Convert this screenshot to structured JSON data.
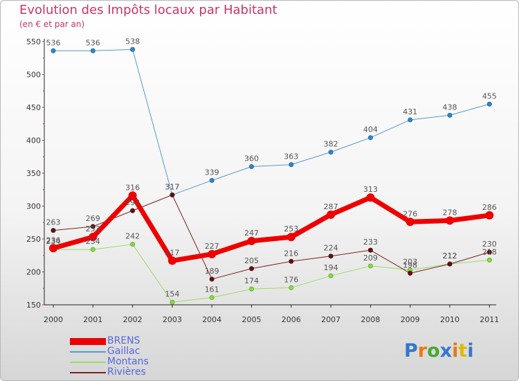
{
  "title": "Evolution des Impôts locaux par Habitant",
  "subtitle": "(en € et par an)",
  "logo_text": "Proxiti",
  "colors": {
    "title": "#cc3366",
    "brens": "#ee0000",
    "gaillac": "#5599cc",
    "montans": "#99dd66",
    "rivieres": "#772222",
    "legend_text": "#5566dd"
  },
  "chart_data": {
    "type": "line",
    "title": "Evolution des Impôts locaux par Habitant",
    "subtitle": "(en € et par an)",
    "xlabel": "",
    "ylabel": "",
    "x": [
      "2000",
      "2001",
      "2002",
      "2003",
      "2004",
      "2005",
      "2006",
      "2007",
      "2008",
      "2009",
      "2010",
      "2011"
    ],
    "ylim": [
      150,
      550
    ],
    "yticks": [
      150,
      200,
      250,
      300,
      350,
      400,
      450,
      500,
      550
    ],
    "grid": false,
    "legend_position": "bottom-left",
    "series": [
      {
        "name": "BRENS",
        "color": "#ee0000",
        "values": [
          236,
          253,
          316,
          217,
          227,
          247,
          253,
          287,
          313,
          276,
          278,
          286
        ]
      },
      {
        "name": "Gaillac",
        "color": "#5599cc",
        "values": [
          536,
          536,
          538,
          317,
          339,
          360,
          363,
          382,
          404,
          431,
          438,
          455
        ]
      },
      {
        "name": "Montans",
        "color": "#99dd66",
        "values": [
          234,
          234,
          242,
          154,
          161,
          174,
          176,
          194,
          209,
          203,
          212,
          218
        ]
      },
      {
        "name": "Rivières",
        "color": "#772222",
        "values": [
          263,
          269,
          293,
          317,
          189,
          205,
          216,
          224,
          233,
          198,
          212,
          230
        ]
      }
    ]
  }
}
